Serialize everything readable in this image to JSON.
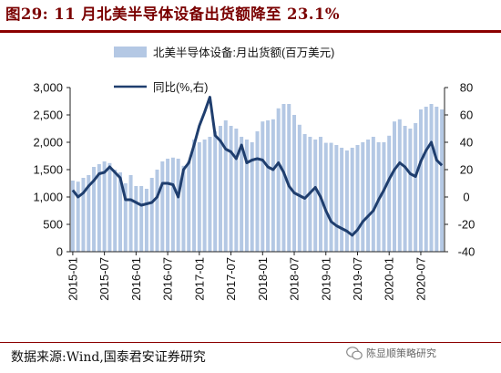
{
  "header": {
    "title": "图29: 11 月北美半导体设备出货额降至 23.1%"
  },
  "footer": {
    "source": "数据来源:Wind,国泰君安证券研究"
  },
  "watermark": {
    "text": "陈显顺策略研究",
    "icon": "wechat-icon"
  },
  "chart_data": {
    "type": "bar+line",
    "categories": [
      "2015-01",
      "2015-02",
      "2015-03",
      "2015-04",
      "2015-05",
      "2015-06",
      "2015-07",
      "2015-08",
      "2015-09",
      "2015-10",
      "2015-11",
      "2015-12",
      "2016-01",
      "2016-02",
      "2016-03",
      "2016-04",
      "2016-05",
      "2016-06",
      "2016-07",
      "2016-08",
      "2016-09",
      "2016-10",
      "2016-11",
      "2016-12",
      "2017-01",
      "2017-02",
      "2017-03",
      "2017-04",
      "2017-05",
      "2017-06",
      "2017-07",
      "2017-08",
      "2017-09",
      "2017-10",
      "2017-11",
      "2017-12",
      "2018-01",
      "2018-02",
      "2018-03",
      "2018-04",
      "2018-05",
      "2018-06",
      "2018-07",
      "2018-08",
      "2018-09",
      "2018-10",
      "2018-11",
      "2018-12",
      "2019-01",
      "2019-02",
      "2019-03",
      "2019-04",
      "2019-05",
      "2019-06",
      "2019-07",
      "2019-08",
      "2019-09",
      "2019-10",
      "2019-11",
      "2019-12",
      "2020-01",
      "2020-02",
      "2020-03",
      "2020-04",
      "2020-05",
      "2020-06",
      "2020-07",
      "2020-08",
      "2020-09",
      "2020-10",
      "2020-11"
    ],
    "tick_labels": [
      "2015-01",
      "2015-07",
      "2016-01",
      "2016-07",
      "2017-01",
      "2017-07",
      "2018-01",
      "2018-07",
      "2019-01",
      "2019-07",
      "2020-01",
      "2020-07"
    ],
    "series": [
      {
        "name": "北美半导体设备:月出货额(百万美元)",
        "type": "bar",
        "axis": "left",
        "values": [
          1300,
          1280,
          1350,
          1400,
          1550,
          1600,
          1650,
          1620,
          1500,
          1450,
          1250,
          1400,
          1200,
          1200,
          1150,
          1350,
          1500,
          1650,
          1700,
          1720,
          1700,
          1570,
          1650,
          2050,
          2000,
          2050,
          2100,
          2200,
          2300,
          2400,
          2300,
          2250,
          2100,
          2050,
          2000,
          2200,
          2380,
          2400,
          2420,
          2620,
          2700,
          2700,
          2500,
          2320,
          2150,
          2100,
          2050,
          2100,
          1990,
          1990,
          1950,
          1900,
          1850,
          1900,
          1950,
          2000,
          2050,
          2100,
          2000,
          2000,
          2120,
          2380,
          2420,
          2300,
          2250,
          2350,
          2600,
          2650,
          2700,
          2650,
          2600
        ]
      },
      {
        "name": "同比(%,右)",
        "type": "line",
        "axis": "right",
        "values": [
          5,
          0,
          3,
          8,
          12,
          17,
          18,
          22,
          18,
          14,
          -2,
          -2,
          -4,
          -6,
          -5,
          -4,
          0,
          10,
          10,
          9,
          0,
          20,
          25,
          38,
          52,
          62,
          73,
          45,
          41,
          35,
          33,
          28,
          38,
          25,
          27,
          28,
          27,
          22,
          20,
          25,
          18,
          8,
          3,
          1,
          -1,
          3,
          7,
          0,
          -10,
          -18,
          -21,
          -23,
          -25,
          -28,
          -24,
          -18,
          -14,
          -10,
          -2,
          5,
          13,
          20,
          25,
          22,
          17,
          15,
          26,
          34,
          40,
          27,
          23.1
        ]
      }
    ],
    "left_axis": {
      "ylim": [
        0,
        3000
      ],
      "ticks": [
        "0",
        "500",
        "1,000",
        "1,500",
        "2,000",
        "2,500",
        "3,000"
      ]
    },
    "right_axis": {
      "ylim": [
        -40,
        80
      ],
      "ticks": [
        "-40",
        "-20",
        "0",
        "20",
        "40",
        "60",
        "80"
      ]
    },
    "colors": {
      "bar": "#b4c8e4",
      "line": "#1f3e6e",
      "title": "#7a0000",
      "rule": "#8b0000"
    },
    "legend_placement": "top"
  }
}
